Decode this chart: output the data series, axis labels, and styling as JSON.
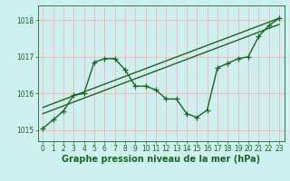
{
  "xlabel": "Graphe pression niveau de la mer (hPa)",
  "bg_color": "#cef0f0",
  "grid_color_v": "#ffb0b0",
  "grid_color_h": "#ffb0b0",
  "line_color": "#1a6620",
  "ylim": [
    1014.7,
    1018.4
  ],
  "xlim": [
    -0.5,
    23.5
  ],
  "yticks": [
    1015,
    1016,
    1017,
    1018
  ],
  "xticks": [
    0,
    1,
    2,
    3,
    4,
    5,
    6,
    7,
    8,
    9,
    10,
    11,
    12,
    13,
    14,
    15,
    16,
    17,
    18,
    19,
    20,
    21,
    22,
    23
  ],
  "data_x": [
    0,
    1,
    2,
    3,
    4,
    5,
    6,
    7,
    8,
    9,
    10,
    11,
    12,
    13,
    14,
    15,
    16,
    17,
    18,
    19,
    20,
    21,
    22,
    23
  ],
  "data_y": [
    1015.05,
    1015.28,
    1015.52,
    1015.95,
    1016.0,
    1016.85,
    1016.95,
    1016.95,
    1016.65,
    1016.2,
    1016.2,
    1016.1,
    1015.85,
    1015.85,
    1015.45,
    1015.35,
    1015.55,
    1016.7,
    1016.82,
    1016.95,
    1017.0,
    1017.55,
    1017.85,
    1018.05
  ],
  "trend1_x": [
    0,
    23
  ],
  "trend1_y": [
    1015.45,
    1017.88
  ],
  "trend2_x": [
    0,
    23
  ],
  "trend2_y": [
    1015.62,
    1018.05
  ],
  "marker": "+",
  "marker_size": 4,
  "lw": 1.0,
  "tick_fontsize": 5.5,
  "xlabel_fontsize": 7.0
}
